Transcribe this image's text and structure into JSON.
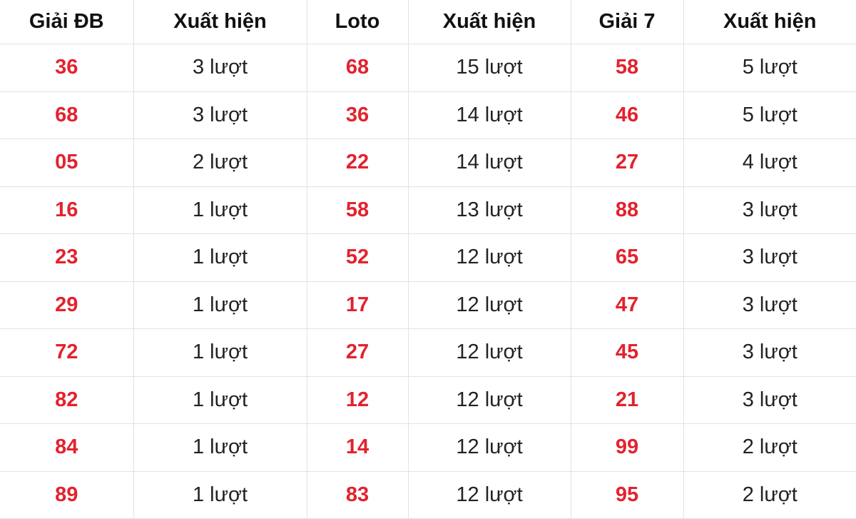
{
  "colors": {
    "number": "#e3222e",
    "text": "#222222",
    "border": "#e2e2e2"
  },
  "headers": [
    "Giải ĐB",
    "Xuất hiện",
    "Loto",
    "Xuất hiện",
    "Giải 7",
    "Xuất hiện"
  ],
  "rows": [
    [
      "36",
      "3 lượt",
      "68",
      "15 lượt",
      "58",
      "5 lượt"
    ],
    [
      "68",
      "3 lượt",
      "36",
      "14 lượt",
      "46",
      "5 lượt"
    ],
    [
      "05",
      "2 lượt",
      "22",
      "14 lượt",
      "27",
      "4 lượt"
    ],
    [
      "16",
      "1 lượt",
      "58",
      "13 lượt",
      "88",
      "3 lượt"
    ],
    [
      "23",
      "1 lượt",
      "52",
      "12 lượt",
      "65",
      "3 lượt"
    ],
    [
      "29",
      "1 lượt",
      "17",
      "12 lượt",
      "47",
      "3 lượt"
    ],
    [
      "72",
      "1 lượt",
      "27",
      "12 lượt",
      "45",
      "3 lượt"
    ],
    [
      "82",
      "1 lượt",
      "12",
      "12 lượt",
      "21",
      "3 lượt"
    ],
    [
      "84",
      "1 lượt",
      "14",
      "12 lượt",
      "99",
      "2 lượt"
    ],
    [
      "89",
      "1 lượt",
      "83",
      "12 lượt",
      "95",
      "2 lượt"
    ]
  ]
}
